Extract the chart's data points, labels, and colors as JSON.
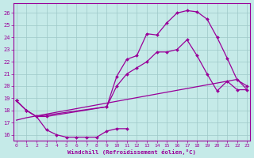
{
  "xlabel": "Windchill (Refroidissement éolien,°C)",
  "background_color": "#c5eae8",
  "grid_color": "#9ec8c8",
  "line_color": "#990099",
  "xlim": [
    -0.3,
    23.3
  ],
  "ylim": [
    15.5,
    26.8
  ],
  "xticks": [
    0,
    1,
    2,
    3,
    4,
    5,
    6,
    7,
    8,
    9,
    10,
    11,
    12,
    13,
    14,
    15,
    16,
    17,
    18,
    19,
    20,
    21,
    22,
    23
  ],
  "yticks": [
    16,
    17,
    18,
    19,
    20,
    21,
    22,
    23,
    24,
    25,
    26
  ],
  "curve_top_x": [
    0,
    1,
    2,
    9,
    10,
    11,
    12,
    13,
    14,
    15,
    16,
    17,
    18,
    19,
    20,
    21,
    22,
    23
  ],
  "curve_top_y": [
    18.8,
    18.0,
    17.5,
    18.3,
    20.8,
    22.2,
    22.5,
    24.3,
    24.2,
    25.2,
    26.0,
    26.2,
    26.1,
    25.5,
    24.0,
    22.3,
    20.5,
    20.0
  ],
  "curve_mid_x": [
    0,
    1,
    2,
    3,
    9,
    10,
    11,
    12,
    13,
    14,
    15,
    16,
    17,
    18,
    19,
    20,
    21,
    22,
    23
  ],
  "curve_mid_y": [
    18.8,
    18.0,
    17.5,
    17.5,
    18.3,
    20.0,
    21.0,
    21.5,
    22.0,
    22.8,
    22.8,
    23.0,
    23.8,
    22.5,
    21.0,
    19.6,
    20.4,
    19.7,
    19.7
  ],
  "curve_dip_x": [
    0,
    1,
    2,
    3,
    4,
    5,
    6,
    7,
    8,
    9,
    10,
    11
  ],
  "curve_dip_y": [
    18.8,
    18.0,
    17.5,
    16.4,
    16.0,
    15.8,
    15.8,
    15.8,
    15.8,
    16.3,
    16.5,
    16.5
  ],
  "curve_diag_x": [
    0,
    1,
    2,
    3,
    4,
    5,
    6,
    7,
    8,
    9,
    10,
    11,
    12,
    13,
    14,
    15,
    16,
    17,
    18,
    19,
    20,
    21,
    22,
    23
  ],
  "curve_diag_y": [
    17.2,
    17.4,
    17.55,
    17.7,
    17.85,
    18.0,
    18.15,
    18.3,
    18.45,
    18.6,
    18.75,
    18.9,
    19.05,
    19.2,
    19.35,
    19.5,
    19.65,
    19.8,
    19.95,
    20.1,
    20.25,
    20.4,
    20.55,
    19.7
  ]
}
